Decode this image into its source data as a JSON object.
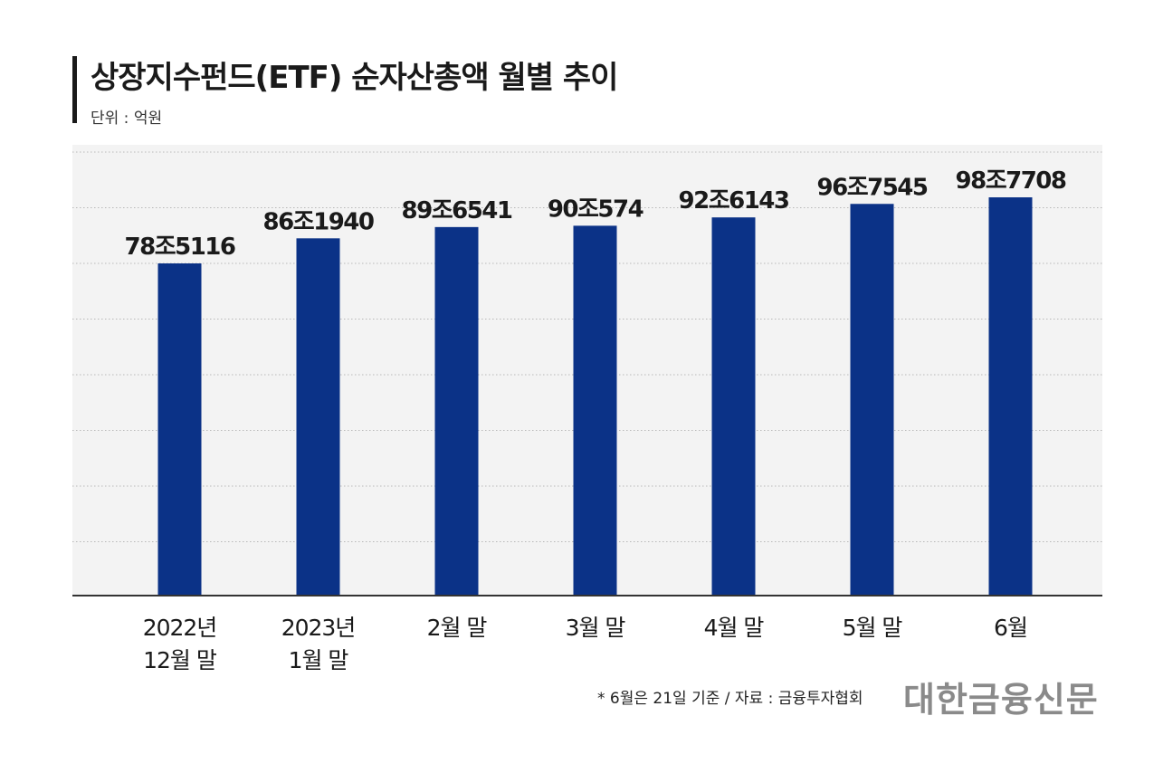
{
  "header": {
    "title": "상장지수펀드(ETF) 순자산총액 월별 추이",
    "unit": "단위 : 억원"
  },
  "chart_data": {
    "type": "bar",
    "title": "상장지수펀드(ETF) 순자산총액 월별 추이",
    "ylabel": "단위 : 억원",
    "categories": [
      [
        "2022년",
        "12월 말"
      ],
      [
        "2023년",
        "1월 말"
      ],
      [
        "2월 말"
      ],
      [
        "3월 말"
      ],
      [
        "4월 말"
      ],
      [
        "5월 말"
      ],
      [
        "6월"
      ]
    ],
    "values": [
      785116,
      861940,
      896541,
      900574,
      926143,
      967545,
      987708
    ],
    "data_labels": [
      "78조5116",
      "86조1940",
      "89조6541",
      "90조574",
      "92조6143",
      "96조7545",
      "98조7708"
    ],
    "bar_color": "#0b3287",
    "grid": true
  },
  "footer": {
    "note": "* 6월은 21일 기준 / 자료 : 금융투자협회",
    "logo": "대한금융신문"
  }
}
